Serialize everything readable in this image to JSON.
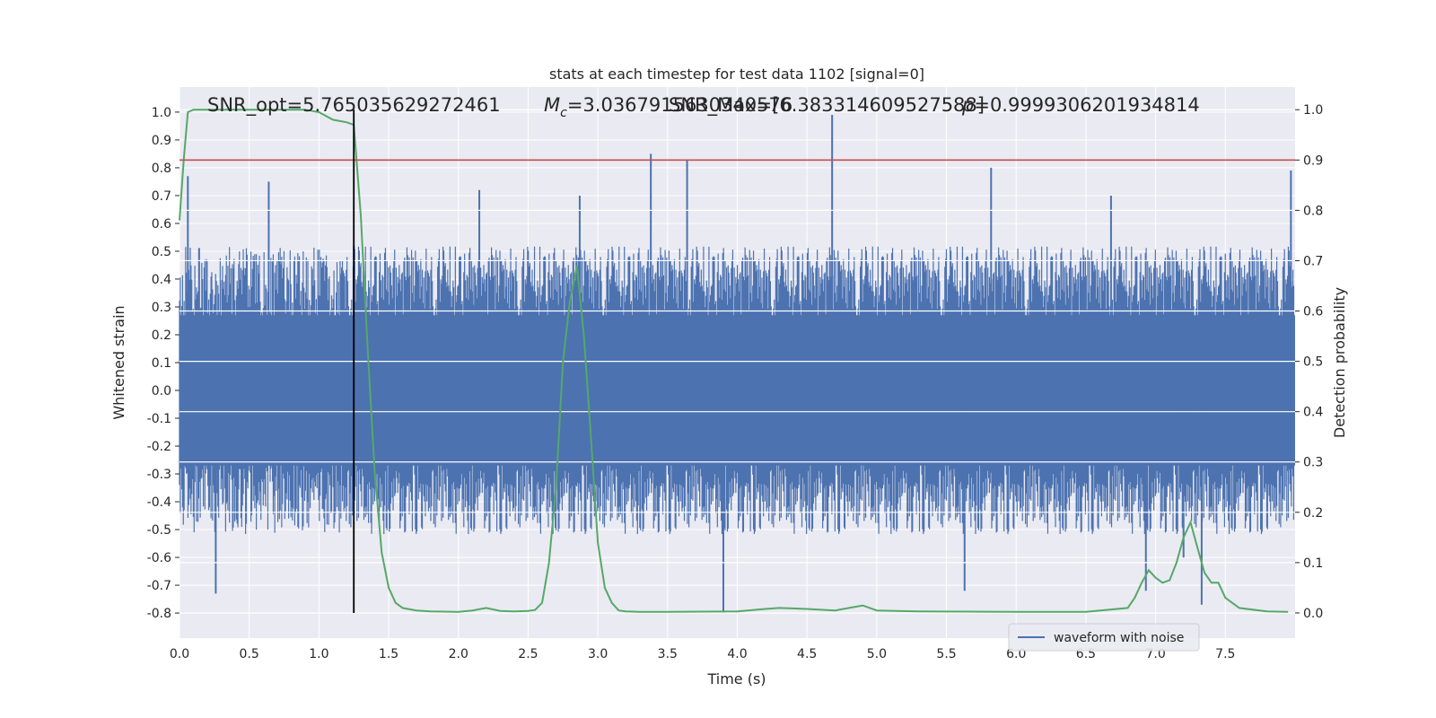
{
  "chart_data": {
    "type": "line",
    "title": "stats at each timestep for test data 1102 [signal=0]",
    "xlabel": "Time (s)",
    "ylabel": "Whitened strain",
    "y2label": "Detection probability",
    "xlim": [
      0.0,
      8.0
    ],
    "ylim": [
      -0.89,
      1.09
    ],
    "y2lim": [
      -0.05,
      1.045
    ],
    "x_ticks": [
      "0.0",
      "0.5",
      "1.0",
      "1.5",
      "2.0",
      "2.5",
      "3.0",
      "3.5",
      "4.0",
      "4.5",
      "5.0",
      "5.5",
      "6.0",
      "6.5",
      "7.0",
      "7.5"
    ],
    "y_ticks": [
      "1.0",
      "0.9",
      "0.8",
      "0.7",
      "0.6",
      "0.5",
      "0.4",
      "0.3",
      "0.2",
      "0.1",
      "0.0",
      "-0.1",
      "-0.2",
      "-0.3",
      "-0.4",
      "-0.5",
      "-0.6",
      "-0.7",
      "-0.8"
    ],
    "y2_ticks": [
      "1.0",
      "0.9",
      "0.8",
      "0.7",
      "0.6",
      "0.5",
      "0.4",
      "0.3",
      "0.2",
      "0.1",
      "0.0"
    ],
    "grid": true,
    "legend": {
      "position": "lower-right",
      "entries": [
        "waveform with noise"
      ]
    },
    "annotations": {
      "snr_opt": "SNR_opt=5.765035629272461",
      "mc": "=3.0367915630340576",
      "snr_max": "SNR_Max=[6.383314609527588]",
      "p": "=0.9999306201934814"
    },
    "colors": {
      "waveform": "#4c72b0",
      "probability": "#55a868",
      "threshold": "#c44e52",
      "marker": "#000000",
      "plot_background": "#eaeaf2",
      "grid": "#ffffff"
    },
    "threshold_probability": 0.9,
    "marker_time": 1.25,
    "series": [
      {
        "name": "waveform with noise",
        "axis": "left",
        "kind": "noise",
        "envelope": {
          "typical_max": 0.45,
          "typical_min": -0.45
        },
        "spikes": [
          {
            "x": 0.06,
            "y": 0.77
          },
          {
            "x": 0.26,
            "y": -0.73
          },
          {
            "x": 0.64,
            "y": 0.75
          },
          {
            "x": 1.25,
            "y": 0.52
          },
          {
            "x": 2.15,
            "y": 0.72
          },
          {
            "x": 2.87,
            "y": 0.7
          },
          {
            "x": 3.38,
            "y": 0.85
          },
          {
            "x": 3.64,
            "y": 0.83
          },
          {
            "x": 3.9,
            "y": -0.8
          },
          {
            "x": 4.68,
            "y": 0.99
          },
          {
            "x": 5.82,
            "y": 0.8
          },
          {
            "x": 5.63,
            "y": -0.72
          },
          {
            "x": 6.68,
            "y": 0.7
          },
          {
            "x": 7.2,
            "y": -0.6
          },
          {
            "x": 7.33,
            "y": -0.77
          },
          {
            "x": 7.97,
            "y": 0.79
          },
          {
            "x": 6.93,
            "y": -0.72
          }
        ]
      },
      {
        "name": "Detection probability",
        "axis": "right",
        "x": [
          0.0,
          0.03,
          0.06,
          0.1,
          0.3,
          0.5,
          0.7,
          0.9,
          1.0,
          1.1,
          1.2,
          1.25,
          1.3,
          1.35,
          1.4,
          1.45,
          1.5,
          1.55,
          1.6,
          1.7,
          1.8,
          2.0,
          2.1,
          2.2,
          2.3,
          2.4,
          2.5,
          2.55,
          2.6,
          2.65,
          2.7,
          2.75,
          2.8,
          2.85,
          2.9,
          2.95,
          3.0,
          3.05,
          3.1,
          3.15,
          3.2,
          3.3,
          3.5,
          4.0,
          4.2,
          4.3,
          4.5,
          4.7,
          4.8,
          4.9,
          5.0,
          5.3,
          6.0,
          6.5,
          6.8,
          6.85,
          6.9,
          6.95,
          7.0,
          7.05,
          7.1,
          7.15,
          7.2,
          7.25,
          7.3,
          7.35,
          7.4,
          7.45,
          7.5,
          7.6,
          7.8,
          7.95
        ],
        "y": [
          0.78,
          0.9,
          0.995,
          1.0,
          1.0,
          1.0,
          1.0,
          1.0,
          0.995,
          0.98,
          0.975,
          0.97,
          0.79,
          0.52,
          0.28,
          0.12,
          0.05,
          0.02,
          0.01,
          0.005,
          0.003,
          0.002,
          0.005,
          0.01,
          0.004,
          0.003,
          0.004,
          0.006,
          0.02,
          0.1,
          0.25,
          0.5,
          0.62,
          0.69,
          0.55,
          0.35,
          0.14,
          0.05,
          0.02,
          0.005,
          0.003,
          0.002,
          0.002,
          0.003,
          0.008,
          0.01,
          0.008,
          0.005,
          0.01,
          0.015,
          0.005,
          0.003,
          0.002,
          0.002,
          0.01,
          0.03,
          0.06,
          0.085,
          0.07,
          0.06,
          0.065,
          0.1,
          0.15,
          0.18,
          0.13,
          0.08,
          0.06,
          0.06,
          0.03,
          0.01,
          0.003,
          0.002
        ]
      }
    ]
  }
}
